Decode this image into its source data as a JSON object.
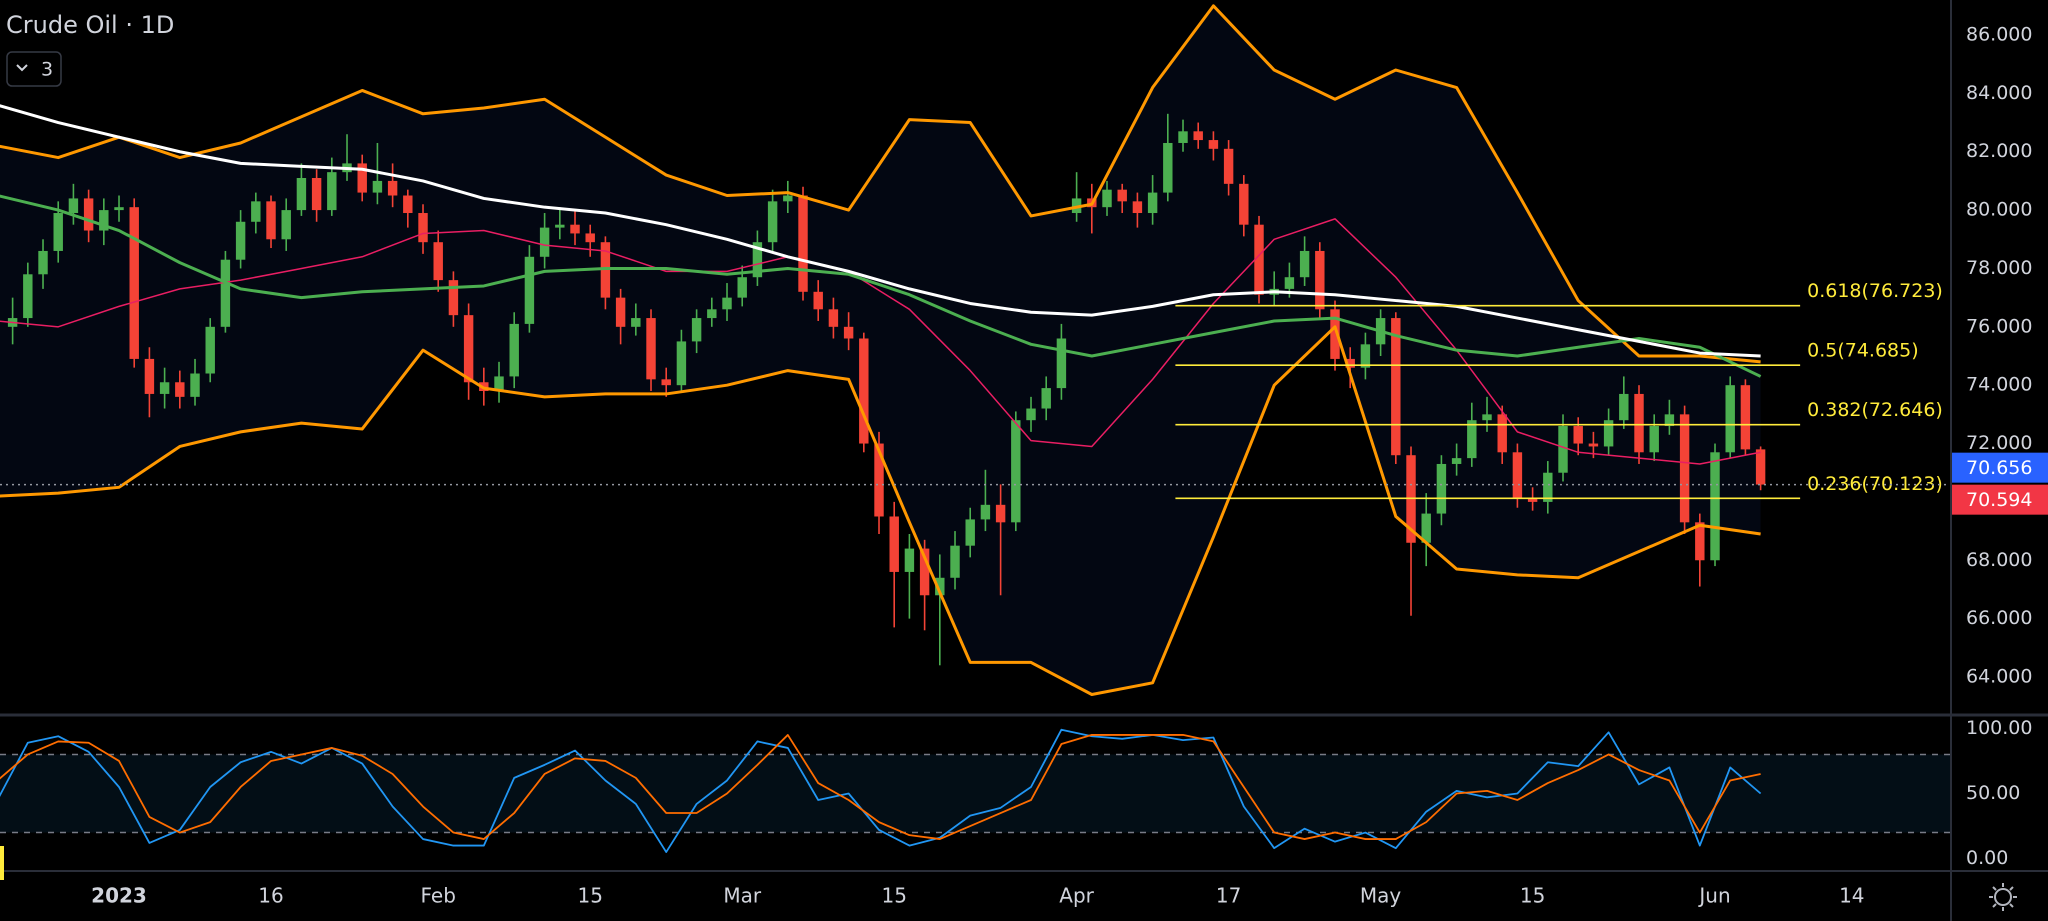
{
  "chart_data": {
    "type": "candlestick",
    "title": "Crude Oil · 1D",
    "indicators_button": 3,
    "x": [
      -7,
      -6,
      -5,
      -4,
      -3,
      -2,
      -1,
      0,
      1,
      2,
      3,
      4,
      5,
      6,
      7,
      8,
      9,
      10,
      11,
      12,
      13,
      14,
      15,
      16,
      17,
      18,
      19,
      20,
      21,
      22,
      23,
      24,
      25,
      26,
      27,
      28,
      29,
      30,
      31,
      32,
      33,
      34,
      35,
      36,
      37,
      38,
      39,
      40,
      41,
      42,
      43,
      44,
      45,
      46,
      47,
      48,
      49,
      50,
      51,
      52,
      53,
      54,
      55,
      56,
      57,
      58,
      59,
      60,
      61,
      62,
      63,
      64,
      65,
      66,
      67,
      68,
      69,
      70,
      71,
      72,
      73,
      74,
      75,
      76,
      77,
      78,
      79,
      80,
      81,
      82,
      83,
      84,
      85,
      86,
      87,
      88,
      89,
      90,
      91,
      92,
      93,
      94,
      95,
      96,
      97,
      98,
      99,
      100,
      101,
      102,
      103,
      104,
      105,
      106,
      107,
      108
    ],
    "open": [
      76.0,
      76.3,
      77.8,
      78.6,
      79.9,
      80.4,
      79.3,
      80.0,
      80.1,
      74.9,
      73.7,
      74.1,
      73.6,
      74.4,
      76.0,
      78.3,
      79.6,
      80.3,
      79.0,
      80.0,
      81.1,
      80.0,
      81.3,
      81.6,
      80.6,
      81.0,
      80.5,
      79.9,
      78.9,
      77.6,
      76.4,
      74.1,
      73.8,
      74.3,
      76.1,
      78.4,
      79.4,
      79.5,
      79.2,
      78.9,
      77.0,
      76.0,
      76.3,
      74.2,
      74.0,
      75.5,
      76.3,
      76.6,
      77.0,
      77.7,
      78.9,
      80.3,
      80.5,
      77.2,
      76.6,
      76.0,
      75.6,
      72.0,
      69.5,
      67.6,
      68.4,
      66.8,
      67.4,
      68.5,
      69.4,
      69.9,
      69.3,
      72.8,
      73.2,
      73.9,
      79.9,
      80.4,
      80.1,
      80.7,
      80.3,
      79.9,
      80.6,
      82.3,
      82.7,
      82.4,
      82.1,
      80.9,
      79.5,
      77.1,
      77.3,
      77.7,
      78.6,
      76.6,
      74.9,
      74.6,
      75.4,
      76.3,
      71.6,
      68.6,
      69.6,
      71.3,
      71.5,
      72.8,
      73.0,
      71.7,
      70.1,
      70.0,
      71.0,
      72.6,
      72.0,
      71.9,
      72.8,
      73.7,
      71.7,
      72.6,
      73.0,
      69.3,
      68.0,
      71.7,
      74.0,
      71.8
    ],
    "high": [
      77.0,
      78.2,
      79.0,
      80.3,
      80.9,
      80.7,
      80.4,
      80.5,
      80.4,
      75.3,
      74.6,
      74.5,
      74.9,
      76.3,
      78.6,
      80.0,
      80.6,
      80.5,
      80.4,
      81.6,
      81.4,
      81.8,
      82.6,
      81.9,
      82.3,
      81.6,
      80.7,
      80.2,
      79.3,
      77.9,
      76.8,
      74.6,
      74.8,
      76.5,
      78.8,
      79.9,
      80.1,
      80.0,
      79.5,
      79.1,
      77.3,
      76.8,
      76.6,
      74.6,
      75.9,
      76.6,
      77.0,
      77.5,
      78.1,
      79.3,
      80.7,
      81.0,
      80.8,
      77.6,
      77.0,
      76.5,
      75.8,
      72.4,
      70.0,
      68.9,
      68.7,
      68.2,
      69.0,
      69.8,
      71.1,
      70.6,
      73.1,
      73.6,
      74.3,
      76.1,
      81.3,
      80.9,
      81.0,
      80.9,
      80.6,
      81.2,
      83.3,
      83.1,
      83.0,
      82.7,
      82.4,
      81.2,
      79.8,
      77.9,
      78.2,
      79.1,
      78.9,
      76.9,
      75.3,
      75.8,
      76.6,
      76.5,
      71.9,
      70.3,
      71.6,
      72.0,
      73.4,
      73.6,
      73.3,
      72.0,
      70.5,
      71.4,
      73.0,
      72.9,
      72.4,
      73.2,
      74.3,
      74.0,
      73.0,
      73.5,
      73.3,
      69.6,
      72.0,
      74.3,
      74.2,
      71.9
    ],
    "low": [
      75.4,
      76.0,
      77.3,
      78.2,
      79.5,
      78.9,
      78.8,
      79.6,
      74.6,
      72.9,
      73.2,
      73.2,
      73.3,
      74.1,
      75.8,
      78.0,
      79.2,
      78.7,
      78.6,
      79.8,
      79.6,
      79.8,
      81.0,
      80.3,
      80.2,
      80.1,
      79.4,
      78.5,
      77.2,
      76.0,
      73.5,
      73.3,
      73.4,
      73.9,
      75.8,
      78.0,
      79.0,
      78.8,
      78.4,
      76.6,
      75.4,
      75.7,
      73.8,
      73.6,
      73.8,
      75.1,
      76.0,
      76.2,
      76.7,
      77.4,
      78.6,
      79.9,
      76.9,
      76.2,
      75.6,
      75.2,
      71.7,
      68.9,
      65.7,
      66.0,
      65.6,
      64.4,
      67.0,
      68.1,
      69.0,
      66.8,
      69.0,
      72.4,
      72.8,
      73.5,
      79.6,
      79.2,
      79.8,
      79.9,
      79.4,
      79.5,
      80.3,
      82.0,
      82.1,
      81.7,
      80.5,
      79.1,
      76.8,
      76.7,
      77.0,
      77.4,
      76.3,
      74.5,
      73.9,
      74.2,
      75.0,
      71.3,
      66.1,
      67.8,
      69.2,
      70.9,
      71.2,
      72.4,
      71.3,
      69.8,
      69.7,
      69.6,
      70.7,
      71.6,
      71.5,
      71.6,
      72.5,
      71.3,
      71.4,
      72.3,
      68.9,
      67.1,
      67.8,
      71.5,
      71.6,
      70.4
    ],
    "close": [
      76.3,
      77.8,
      78.6,
      79.9,
      80.4,
      79.3,
      80.0,
      80.1,
      74.9,
      73.7,
      74.1,
      73.6,
      74.4,
      76.0,
      78.3,
      79.6,
      80.3,
      79.0,
      80.0,
      81.1,
      80.0,
      81.3,
      81.6,
      80.6,
      81.0,
      80.5,
      79.9,
      78.9,
      77.6,
      76.4,
      74.1,
      73.8,
      74.3,
      76.1,
      78.4,
      79.4,
      79.5,
      79.2,
      78.9,
      77.0,
      76.0,
      76.3,
      74.2,
      74.0,
      75.5,
      76.3,
      76.6,
      77.0,
      77.7,
      78.9,
      80.3,
      80.5,
      77.2,
      76.6,
      76.0,
      75.6,
      72.0,
      69.5,
      67.6,
      68.4,
      66.8,
      67.4,
      68.5,
      69.4,
      69.9,
      69.3,
      72.8,
      73.2,
      73.9,
      75.6,
      80.4,
      80.1,
      80.7,
      80.3,
      79.9,
      80.6,
      82.3,
      82.7,
      82.4,
      82.1,
      80.9,
      79.5,
      77.1,
      77.3,
      77.7,
      78.6,
      76.6,
      74.9,
      74.6,
      75.4,
      76.3,
      71.6,
      68.6,
      69.6,
      71.3,
      71.5,
      72.8,
      73.0,
      71.7,
      70.1,
      70.0,
      71.0,
      72.6,
      72.0,
      71.9,
      72.8,
      73.7,
      71.7,
      72.6,
      73.0,
      69.3,
      68.0,
      71.7,
      74.0,
      71.8,
      70.594
    ],
    "up_color": "#4caf50",
    "down_color": "#f44336",
    "xlim": [
      -7.83,
      120.46
    ],
    "xticks": [
      {
        "value": 0,
        "label": "2023"
      },
      {
        "value": 10,
        "label": "16"
      },
      {
        "value": 21,
        "label": "Feb"
      },
      {
        "value": 31,
        "label": "15"
      },
      {
        "value": 41,
        "label": "Mar"
      },
      {
        "value": 51,
        "label": "15"
      },
      {
        "value": 63,
        "label": "Apr"
      },
      {
        "value": 73,
        "label": "17"
      },
      {
        "value": 83,
        "label": "May"
      },
      {
        "value": 93,
        "label": "15"
      },
      {
        "value": 105,
        "label": "Jun"
      },
      {
        "value": 114,
        "label": "14"
      }
    ],
    "ylim": [
      62.8,
      87.2
    ],
    "yticks": [
      {
        "value": 64,
        "label": "64.000"
      },
      {
        "value": 66,
        "label": "66.000"
      },
      {
        "value": 68,
        "label": "68.000"
      },
      {
        "value": 70,
        "label": "70.000"
      },
      {
        "value": 72,
        "label": "72.000"
      },
      {
        "value": 74,
        "label": "74.000"
      },
      {
        "value": 76,
        "label": "76.000"
      },
      {
        "value": 78,
        "label": "78.000"
      },
      {
        "value": 80,
        "label": "80.000"
      },
      {
        "value": 82,
        "label": "82.000"
      },
      {
        "value": 84,
        "label": "84.000"
      },
      {
        "value": 86,
        "label": "86.000"
      }
    ],
    "grid": true,
    "band_fill": "rgba(41,98,255,0.07)",
    "line_x": [
      -8,
      -4,
      0,
      4,
      8,
      12,
      16,
      20,
      24,
      28,
      32,
      36,
      40,
      44,
      48,
      52,
      56,
      60,
      64,
      68,
      72,
      76,
      80,
      84,
      88,
      92,
      96,
      100,
      104,
      108
    ],
    "lines": [
      {
        "color": "#ff9800",
        "values": [
          82.2,
          81.8,
          82.5,
          81.8,
          82.3,
          83.2,
          84.1,
          83.3,
          83.5,
          83.8,
          82.5,
          81.2,
          80.5,
          80.6,
          80.0,
          83.1,
          83.0,
          79.8,
          80.2,
          84.2,
          87.0,
          84.8,
          83.8,
          84.8,
          84.2,
          80.6,
          76.9,
          75.0,
          75.0,
          74.8
        ]
      },
      {
        "color": "#ff9800",
        "values": [
          70.2,
          70.3,
          70.5,
          71.9,
          72.4,
          72.7,
          72.5,
          75.2,
          73.9,
          73.6,
          73.7,
          73.7,
          74.0,
          74.5,
          74.2,
          69.3,
          64.5,
          64.5,
          63.4,
          63.8,
          68.8,
          74.0,
          76.0,
          69.5,
          67.7,
          67.5,
          67.4,
          68.3,
          69.2,
          68.9
        ]
      },
      {
        "color": "#e91e63",
        "values": [
          76.2,
          76.0,
          76.7,
          77.3,
          77.6,
          78.0,
          78.4,
          79.2,
          79.3,
          78.8,
          78.6,
          77.9,
          77.9,
          78.4,
          77.9,
          76.6,
          74.5,
          72.1,
          71.9,
          74.2,
          76.8,
          79.0,
          79.7,
          77.7,
          75.2,
          72.4,
          71.7,
          71.5,
          71.3,
          71.7
        ]
      },
      {
        "color": "#4caf50",
        "values": [
          80.5,
          80.0,
          79.3,
          78.2,
          77.3,
          77.0,
          77.2,
          77.3,
          77.4,
          77.9,
          78.0,
          78.0,
          77.8,
          78.0,
          77.8,
          77.1,
          76.2,
          75.4,
          75.0,
          75.4,
          75.8,
          76.2,
          76.3,
          75.7,
          75.2,
          75.0,
          75.3,
          75.6,
          75.3,
          74.3
        ]
      },
      {
        "color": "#ffffff",
        "values": [
          83.6,
          83.0,
          82.5,
          82.0,
          81.6,
          81.5,
          81.4,
          81.0,
          80.4,
          80.1,
          79.9,
          79.5,
          79.0,
          78.4,
          77.9,
          77.3,
          76.8,
          76.5,
          76.4,
          76.7,
          77.1,
          77.2,
          77.1,
          76.9,
          76.7,
          76.3,
          75.9,
          75.5,
          75.1,
          75.0
        ]
      }
    ],
    "fib_color": "#ffeb3b",
    "fib_x": [
      69.5,
      110.6
    ],
    "fib_levels": [
      {
        "label": "0.618(76.723)",
        "value": 76.723
      },
      {
        "label": "0.5(74.685)",
        "value": 74.685
      },
      {
        "label": "0.382(72.646)",
        "value": 72.646
      },
      {
        "label": "0.236(70.123)",
        "value": 70.123
      }
    ],
    "price_tags": [
      {
        "value": 70.656,
        "color": "#2962ff"
      },
      {
        "value": 70.594,
        "color": "#f23645"
      }
    ],
    "oscillator": {
      "ylim": [
        -8,
        108
      ],
      "yticks": [
        {
          "value": 0,
          "label": "0.00"
        },
        {
          "value": 50,
          "label": "50.00"
        },
        {
          "value": 100,
          "label": "100.00"
        }
      ],
      "levels": [
        20,
        80
      ],
      "x": [
        -8,
        -6,
        -4,
        -2,
        0,
        2,
        4,
        6,
        8,
        10,
        12,
        14,
        16,
        18,
        20,
        22,
        24,
        26,
        28,
        30,
        32,
        34,
        36,
        38,
        40,
        42,
        44,
        46,
        48,
        50,
        52,
        54,
        56,
        58,
        60,
        62,
        64,
        66,
        68,
        70,
        72,
        74,
        76,
        78,
        80,
        82,
        84,
        86,
        88,
        90,
        92,
        94,
        96,
        98,
        100,
        102,
        104,
        106,
        108
      ],
      "series": [
        {
          "color": "#2196f3",
          "values": [
            45,
            89,
            94,
            82,
            55,
            12,
            22,
            55,
            74,
            82,
            73,
            85,
            73,
            40,
            15,
            10,
            10,
            62,
            72,
            83,
            60,
            42,
            5,
            42,
            60,
            90,
            85,
            45,
            50,
            22,
            10,
            16,
            33,
            39,
            55,
            99,
            94,
            92,
            95,
            91,
            93,
            40,
            8,
            23,
            13,
            20,
            8,
            36,
            52,
            47,
            50,
            74,
            71,
            97,
            57,
            70,
            10,
            70,
            50
          ]
        },
        {
          "color": "#ff6d00",
          "values": [
            60,
            80,
            90,
            89,
            75,
            32,
            20,
            28,
            55,
            75,
            80,
            85,
            79,
            65,
            40,
            20,
            15,
            35,
            65,
            77,
            75,
            62,
            35,
            35,
            50,
            72,
            95,
            58,
            45,
            28,
            18,
            15,
            25,
            35,
            45,
            88,
            95,
            95,
            95,
            95,
            90,
            55,
            20,
            15,
            20,
            15,
            15,
            28,
            50,
            52,
            45,
            58,
            68,
            80,
            68,
            60,
            20,
            60,
            65
          ]
        }
      ]
    }
  }
}
